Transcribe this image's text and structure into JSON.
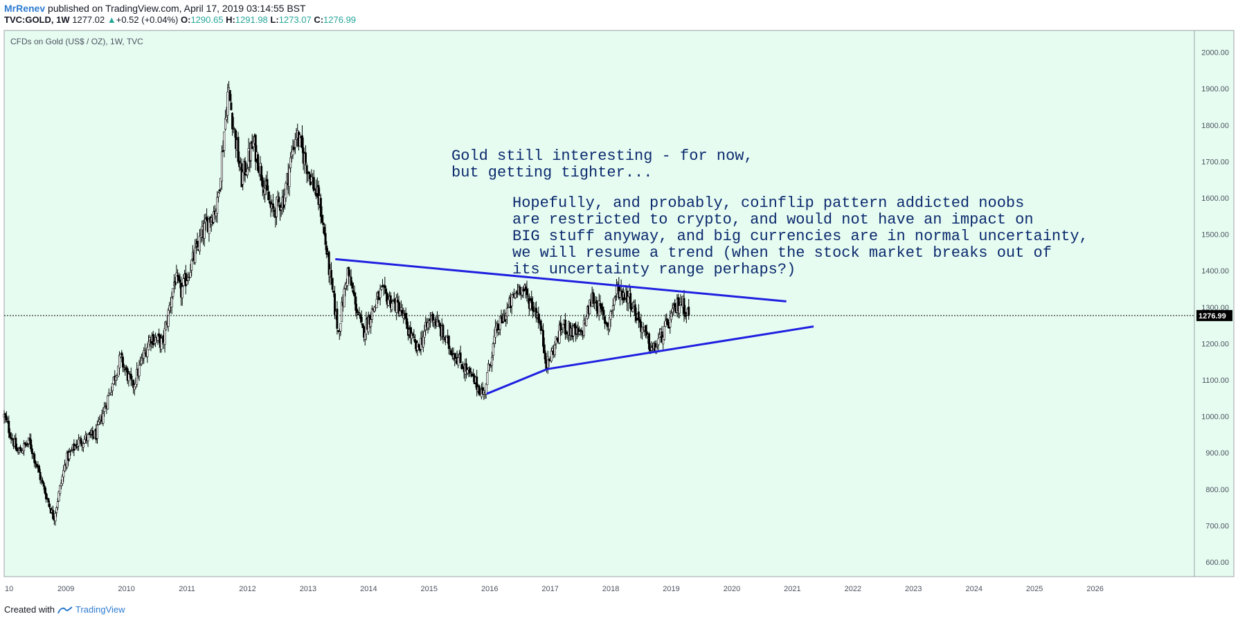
{
  "header": {
    "user": "MrRenev",
    "published": "published on TradingView.com, April 17, 2019 03:14:55 BST",
    "symbol": "TVC:GOLD, 1W",
    "last": "1277.02",
    "change": "+0.52 (+0.04%)",
    "o_label": "O:",
    "o_value": "1290.65",
    "h_label": "H:",
    "h_value": "1291.98",
    "l_label": "L:",
    "l_value": "1273.07",
    "c_label": "C:",
    "c_value": "1276.99"
  },
  "chart_title": "CFDs on Gold (US$ / OZ), 1W, TVC",
  "footer": {
    "created": "Created with",
    "brand": "TradingView"
  },
  "colors": {
    "background": "#e6fcf1",
    "candle": "#000000",
    "trendline": "#1f1fe0",
    "annotation": "#0c2a6e",
    "axis_text": "#4c525e"
  },
  "annotations": [
    [
      "Gold still interesting - for now,",
      "but getting tighter..."
    ],
    [
      "Hopefully, and probably, coinflip pattern addicted noobs",
      "are restricted to crypto, and would not have an impact on",
      "BIG stuff anyway, and big currencies are in normal uncertainty,",
      "we will resume a trend (when the stock market breaks out of",
      "its uncertainty range perhaps?)"
    ]
  ],
  "chart_data": {
    "type": "candlestick",
    "title": "CFDs on Gold (US$ / OZ), 1W, TVC",
    "x_ticks": [
      "10",
      "2009",
      "2010",
      "2011",
      "2012",
      "2013",
      "2014",
      "2015",
      "2016",
      "2017",
      "2018",
      "2019",
      "2020",
      "2021",
      "2022",
      "2023",
      "2024",
      "2025",
      "2026"
    ],
    "y_ticks": [
      "600.00",
      "700.00",
      "800.00",
      "900.00",
      "1000.00",
      "1100.00",
      "1200.00",
      "1300.00",
      "1400.00",
      "1500.00",
      "1600.00",
      "1700.00",
      "1800.00",
      "1900.00",
      "2000.00"
    ],
    "ylim": [
      560,
      2060
    ],
    "xlim": [
      2007.98,
      2027.64
    ],
    "last_price": 1276.99,
    "last_price_label": "1276.99",
    "series": [
      {
        "name": "",
        "points": [
          [
            2007.98,
            1000
          ],
          [
            2008.2,
            900
          ],
          [
            2008.4,
            930
          ],
          [
            2008.6,
            820
          ],
          [
            2008.8,
            720
          ],
          [
            2009.0,
            880
          ],
          [
            2009.2,
            930
          ],
          [
            2009.5,
            950
          ],
          [
            2009.9,
            1160
          ],
          [
            2010.1,
            1080
          ],
          [
            2010.4,
            1220
          ],
          [
            2010.6,
            1200
          ],
          [
            2010.8,
            1380
          ],
          [
            2010.9,
            1340
          ],
          [
            2011.3,
            1520
          ],
          [
            2011.5,
            1580
          ],
          [
            2011.68,
            1900
          ],
          [
            2011.9,
            1650
          ],
          [
            2012.1,
            1750
          ],
          [
            2012.4,
            1560
          ],
          [
            2012.6,
            1600
          ],
          [
            2012.8,
            1780
          ],
          [
            2013.0,
            1680
          ],
          [
            2013.2,
            1580
          ],
          [
            2013.35,
            1400
          ],
          [
            2013.5,
            1230
          ],
          [
            2013.65,
            1400
          ],
          [
            2013.9,
            1230
          ],
          [
            2014.2,
            1340
          ],
          [
            2014.5,
            1300
          ],
          [
            2014.8,
            1180
          ],
          [
            2015.05,
            1280
          ],
          [
            2015.3,
            1200
          ],
          [
            2015.6,
            1130
          ],
          [
            2015.9,
            1060
          ],
          [
            2016.1,
            1230
          ],
          [
            2016.5,
            1360
          ],
          [
            2016.8,
            1280
          ],
          [
            2016.95,
            1140
          ],
          [
            2017.2,
            1250
          ],
          [
            2017.5,
            1220
          ],
          [
            2017.7,
            1330
          ],
          [
            2017.95,
            1250
          ],
          [
            2018.1,
            1350
          ],
          [
            2018.3,
            1330
          ],
          [
            2018.6,
            1210
          ],
          [
            2018.7,
            1180
          ],
          [
            2018.9,
            1240
          ],
          [
            2019.15,
            1320
          ],
          [
            2019.3,
            1277
          ]
        ]
      }
    ],
    "trendlines": [
      {
        "from": [
          2013.45,
          1432
        ],
        "to": [
          2020.9,
          1316
        ]
      },
      {
        "from": [
          2015.95,
          1062
        ],
        "to": [
          2016.95,
          1130
        ]
      },
      {
        "from": [
          2016.95,
          1130
        ],
        "to": [
          2021.35,
          1247
        ]
      }
    ]
  }
}
